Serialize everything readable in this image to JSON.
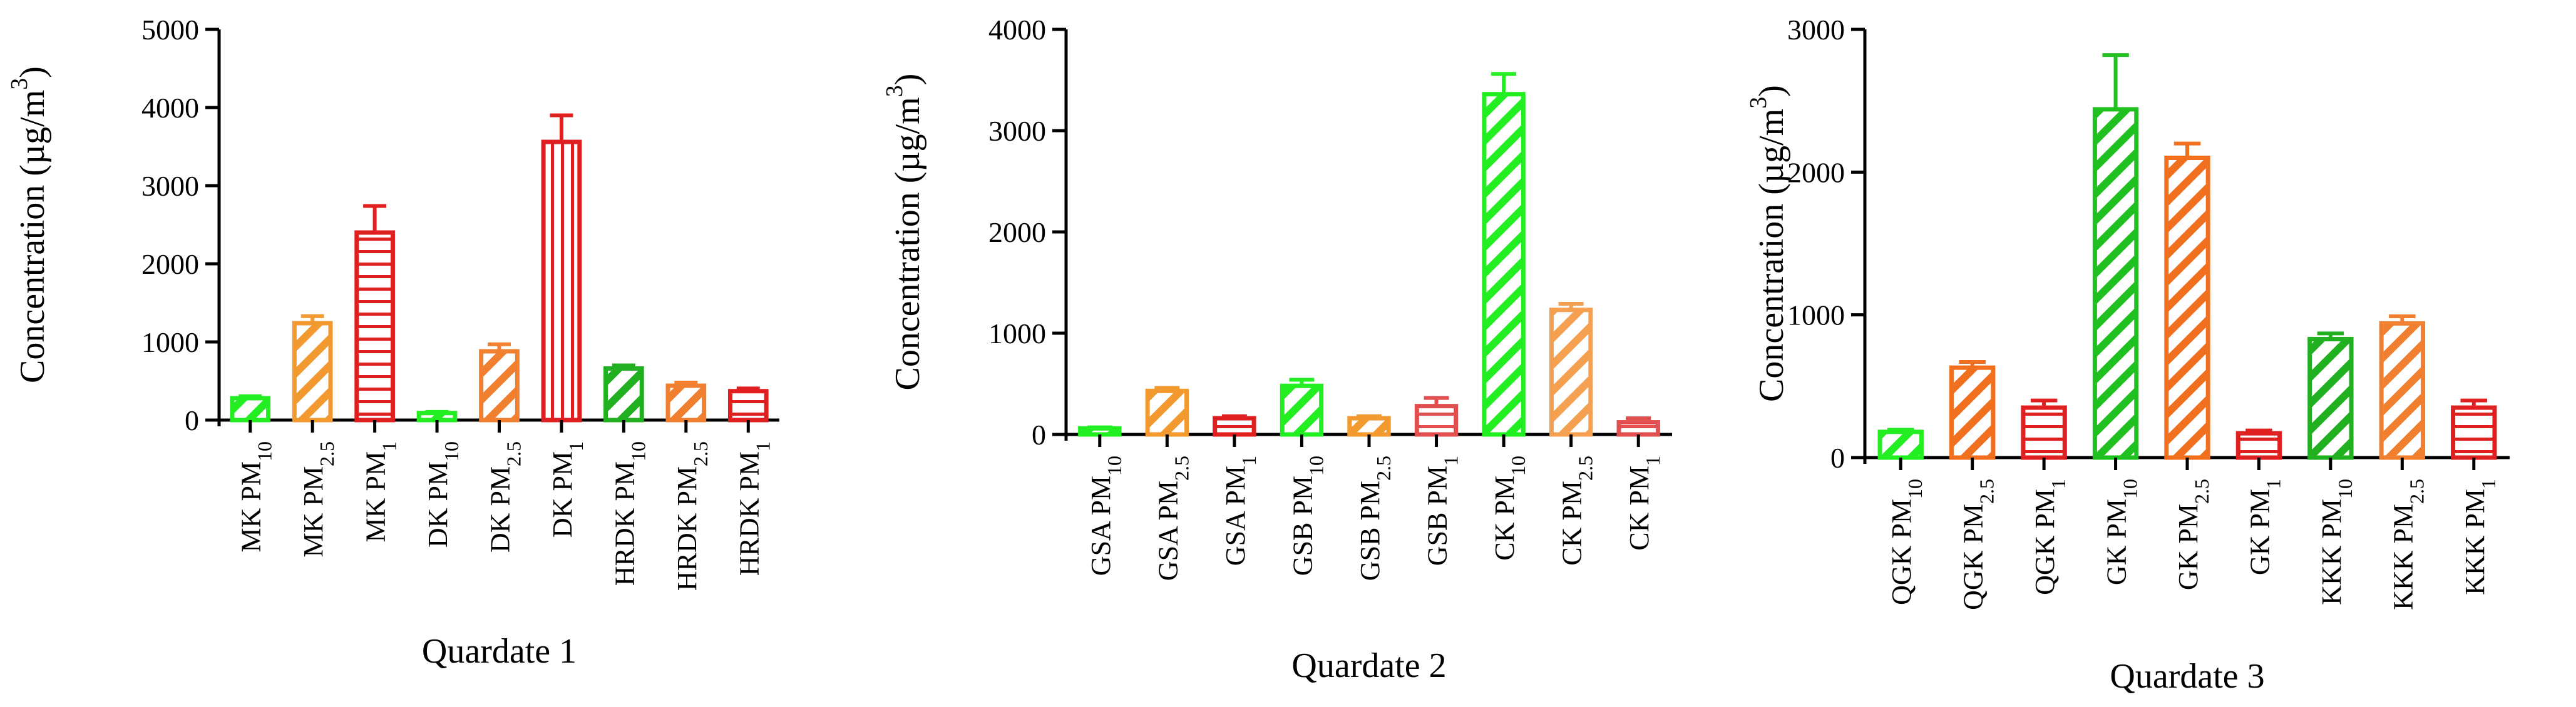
{
  "chart_data": [
    {
      "type": "bar",
      "xlabel": "Quardate 1",
      "ylabel": "Concentration (µg/m",
      "ylabel_sup": "3",
      "ylabel_close": ")",
      "ylim": [
        0,
        5000
      ],
      "yticks": [
        0,
        1000,
        2000,
        3000,
        4000,
        5000
      ],
      "categories": [
        {
          "base": "MK PM",
          "sub": "10"
        },
        {
          "base": "MK PM",
          "sub": "2.5"
        },
        {
          "base": "MK PM",
          "sub": "1"
        },
        {
          "base": "DK PM",
          "sub": "10"
        },
        {
          "base": "DK PM",
          "sub": "2.5"
        },
        {
          "base": "DK PM",
          "sub": "1"
        },
        {
          "base": "HRDK PM",
          "sub": "10"
        },
        {
          "base": "HRDK PM",
          "sub": "2.5"
        },
        {
          "base": "HRDK PM",
          "sub": "1"
        }
      ],
      "values": [
        280,
        1240,
        2400,
        90,
        880,
        3560,
        660,
        440,
        370
      ],
      "errors": [
        25,
        90,
        340,
        15,
        90,
        340,
        40,
        40,
        35
      ],
      "colors": [
        "#22ee22",
        "#f29a30",
        "#e02020",
        "#22ee22",
        "#f08030",
        "#e02020",
        "#20b020",
        "#f08030",
        "#e02020"
      ],
      "patterns": [
        "diag",
        "diag",
        "horiz",
        "diag",
        "diag",
        "vert",
        "diag",
        "diag",
        "horiz"
      ]
    },
    {
      "type": "bar",
      "xlabel": "Quardate 2",
      "ylabel": "Concentration (µg/m",
      "ylabel_sup": "3",
      "ylabel_close": ")",
      "ylim": [
        0,
        4000
      ],
      "yticks": [
        0,
        1000,
        2000,
        3000,
        4000
      ],
      "categories": [
        {
          "base": "GSA PM",
          "sub": "10"
        },
        {
          "base": "GSA PM",
          "sub": "2.5"
        },
        {
          "base": "GSA PM",
          "sub": "1"
        },
        {
          "base": "GSB PM",
          "sub": "10"
        },
        {
          "base": "GSB PM",
          "sub": "2.5"
        },
        {
          "base": "GSB PM",
          "sub": "1"
        },
        {
          "base": "CK PM",
          "sub": "10"
        },
        {
          "base": "CK PM",
          "sub": "2.5"
        },
        {
          "base": "CK PM",
          "sub": "1"
        }
      ],
      "values": [
        60,
        430,
        160,
        480,
        160,
        280,
        3360,
        1230,
        120
      ],
      "errors": [
        10,
        30,
        20,
        60,
        20,
        80,
        200,
        60,
        40
      ],
      "colors": [
        "#22ee22",
        "#f29a30",
        "#e02020",
        "#22ee22",
        "#f29a30",
        "#e05050",
        "#22ee22",
        "#f5a050",
        "#e05050"
      ],
      "patterns": [
        "diag",
        "diag",
        "horiz",
        "diag",
        "diag",
        "horiz",
        "diag",
        "diag",
        "horiz"
      ]
    },
    {
      "type": "bar",
      "xlabel": "Quardate 3",
      "ylabel": "Concentration (µg/m",
      "ylabel_sup": "3",
      "ylabel_close": ")",
      "ylim": [
        0,
        3000
      ],
      "yticks": [
        0,
        1000,
        2000,
        3000
      ],
      "categories": [
        {
          "base": "QGK PM",
          "sub": "10"
        },
        {
          "base": "QGK PM",
          "sub": "2.5"
        },
        {
          "base": "QGK PM",
          "sub": "1"
        },
        {
          "base": "GK PM",
          "sub": "10"
        },
        {
          "base": "GK PM",
          "sub": "2.5"
        },
        {
          "base": "GK PM",
          "sub": "1"
        },
        {
          "base": "KKK PM",
          "sub": "10"
        },
        {
          "base": "KKK PM",
          "sub": "2.5"
        },
        {
          "base": "KKK PM",
          "sub": "1"
        }
      ],
      "values": [
        180,
        630,
        350,
        2440,
        2100,
        170,
        830,
        940,
        350
      ],
      "errors": [
        15,
        40,
        50,
        380,
        100,
        20,
        40,
        50,
        50
      ],
      "colors": [
        "#22ee22",
        "#f07020",
        "#e02020",
        "#20c020",
        "#f07020",
        "#e02020",
        "#20b020",
        "#f08030",
        "#e02020"
      ],
      "patterns": [
        "diag",
        "diag",
        "horiz",
        "diag",
        "diag",
        "horiz",
        "diag",
        "diag",
        "horiz"
      ]
    }
  ]
}
